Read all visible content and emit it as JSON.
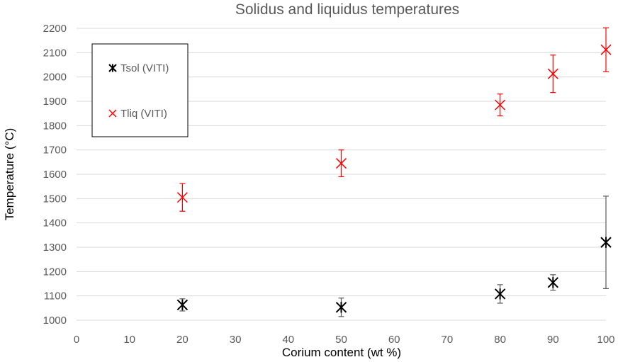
{
  "chart_data": {
    "type": "scatter",
    "title": "Solidus and liquidus temperatures",
    "xlabel": "Corium content (wt %)",
    "ylabel": "Temperature (°C)",
    "xlim": [
      0,
      100
    ],
    "ylim": [
      1000,
      2200
    ],
    "x_ticks": [
      "0",
      "10",
      "20",
      "30",
      "40",
      "50",
      "60",
      "70",
      "80",
      "90",
      "100"
    ],
    "y_ticks": [
      "1000",
      "1100",
      "1200",
      "1300",
      "1400",
      "1500",
      "1600",
      "1700",
      "1800",
      "1900",
      "2000",
      "2100",
      "2200"
    ],
    "grid": "horizontal",
    "legend_position": "top-left",
    "series": [
      {
        "name": "Tsol (VITI)",
        "marker": "asterisk",
        "color": "#000000",
        "error_bar_color": "#595959",
        "points": [
          {
            "x": 20,
            "y": 1063,
            "err_low": 25,
            "err_high": 25
          },
          {
            "x": 50,
            "y": 1053,
            "err_low": 38,
            "err_high": 38
          },
          {
            "x": 80,
            "y": 1108,
            "err_low": 38,
            "err_high": 38
          },
          {
            "x": 90,
            "y": 1155,
            "err_low": 32,
            "err_high": 32
          },
          {
            "x": 100,
            "y": 1320,
            "err_low": 190,
            "err_high": 190
          }
        ]
      },
      {
        "name": "Tliq (VITI)",
        "marker": "x",
        "color": "#ff0000",
        "error_bar_color": "#ff0000",
        "points": [
          {
            "x": 20,
            "y": 1505,
            "err_low": 57,
            "err_high": 57
          },
          {
            "x": 50,
            "y": 1645,
            "err_low": 55,
            "err_high": 55
          },
          {
            "x": 80,
            "y": 1885,
            "err_low": 45,
            "err_high": 45
          },
          {
            "x": 90,
            "y": 2013,
            "err_low": 77,
            "err_high": 77
          },
          {
            "x": 100,
            "y": 2112,
            "err_low": 90,
            "err_high": 90
          }
        ]
      }
    ]
  }
}
